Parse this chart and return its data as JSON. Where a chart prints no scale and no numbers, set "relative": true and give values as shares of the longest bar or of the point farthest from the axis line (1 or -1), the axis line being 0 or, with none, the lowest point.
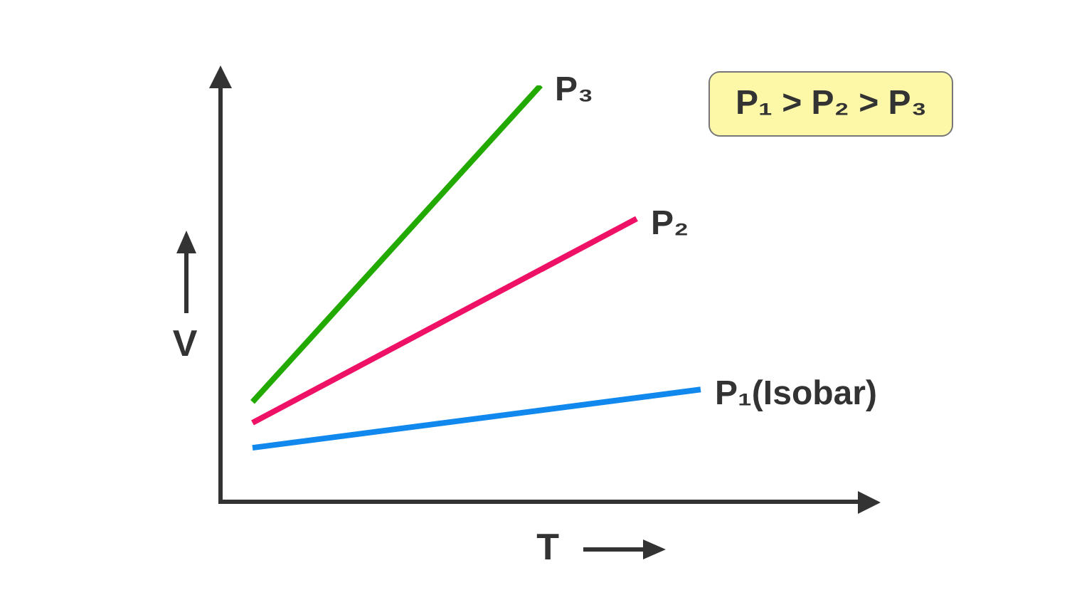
{
  "chart_data": {
    "type": "line",
    "relative": true,
    "xlabel": "T",
    "ylabel": "V",
    "annotations": [
      "P₁ > P₂ > P₃"
    ],
    "legend": false,
    "grid": false,
    "marker": "none",
    "line_style": "solid",
    "categories": [
      null,
      null,
      null,
      null,
      null,
      null,
      null,
      null,
      null,
      null,
      null,
      null,
      null,
      null,
      null,
      null,
      null,
      null,
      null,
      null,
      null
    ],
    "series": [
      {
        "name": "P₃",
        "color": "#22aa00",
        "values": [
          null,
          0.24,
          null,
          null,
          null,
          null,
          null,
          null,
          null,
          null,
          1.0,
          null,
          null,
          null,
          null,
          null,
          null,
          null,
          null,
          null,
          null
        ]
      },
      {
        "name": "P₂",
        "color": "#ee1166",
        "values": [
          null,
          0.19,
          null,
          null,
          null,
          null,
          null,
          null,
          null,
          null,
          null,
          null,
          null,
          0.68,
          null,
          null,
          null,
          null,
          null,
          null,
          null
        ]
      },
      {
        "name": "P₁(Isobar)",
        "color": "#1188ee",
        "values": [
          null,
          0.13,
          null,
          null,
          null,
          null,
          null,
          null,
          null,
          null,
          null,
          null,
          null,
          null,
          null,
          0.27,
          null,
          null,
          null,
          null,
          null
        ]
      }
    ]
  }
}
